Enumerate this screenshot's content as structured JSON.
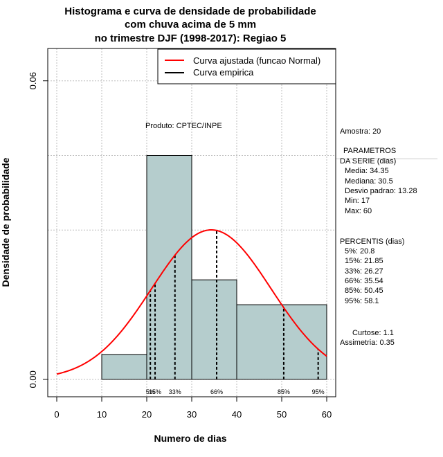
{
  "chart_data": {
    "type": "bar",
    "title_lines": [
      "Histograma e curva de densidade de probabilidade",
      "com chuva acima de 5 mm",
      "no trimestre DJF (1998-2017): Regiao 5"
    ],
    "xlabel": "Numero de dias",
    "ylabel": "Densidade de probabilidade",
    "xlim": [
      -2,
      62
    ],
    "ylim": [
      -0.0035,
      0.0665
    ],
    "x_ticks": [
      0,
      10,
      20,
      30,
      40,
      50,
      60
    ],
    "x_tick_labels": [
      "0",
      "10",
      "20",
      "30",
      "40",
      "50",
      "60"
    ],
    "y_ticks": [
      0.0,
      0.06
    ],
    "y_tick_labels": [
      "0.00",
      "0.06"
    ],
    "grid": true,
    "grid_x": [
      0,
      10,
      20,
      30,
      40,
      50,
      60
    ],
    "grid_y": [
      0.0,
      0.03,
      0.045,
      0.06
    ],
    "histogram": {
      "bins": [
        {
          "x0": 10,
          "x1": 20,
          "density": 0.005
        },
        {
          "x0": 20,
          "x1": 30,
          "density": 0.045
        },
        {
          "x0": 30,
          "x1": 40,
          "density": 0.02
        },
        {
          "x0": 40,
          "x1": 60,
          "density": 0.015
        }
      ],
      "fill_color": "#b5cdcd",
      "edge_color": "#000000"
    },
    "normal_curve": {
      "mean": 34.35,
      "sd": 13.28,
      "x_from": 0,
      "x_to": 60,
      "color": "#ff0000"
    },
    "percentile_lines": [
      {
        "label": "5%",
        "x": 20.8
      },
      {
        "label": "15%",
        "x": 21.85
      },
      {
        "label": "33%",
        "x": 26.27
      },
      {
        "label": "66%",
        "x": 35.54
      },
      {
        "label": "85%",
        "x": 50.45
      },
      {
        "label": "95%",
        "x": 58.1
      }
    ],
    "legend": {
      "position": "top-right",
      "entries": [
        {
          "label": "Curva ajustada (funcao Normal)",
          "color": "#ff0000"
        },
        {
          "label": "Curva empirica",
          "color": "#000000"
        }
      ]
    },
    "annotation": "Produto: CPTEC/INPE"
  },
  "side_panel": {
    "amostra": "Amostra: 20",
    "parametros_title_1": "PARAMETROS",
    "parametros_title_2": "DA SERIE (dias)",
    "media": "Media: 34.35",
    "mediana": "Mediana: 30.5",
    "desvio": "Desvio padrao: 13.28",
    "min": "Min: 17",
    "max": "Max: 60",
    "percentis_title": "PERCENTIS (dias)",
    "p5": "5%: 20.8",
    "p15": "15%: 21.85",
    "p33": "33%: 26.27",
    "p66": "66%: 35.54",
    "p85": "85%: 50.45",
    "p95": "95%: 58.1",
    "curtose": "Curtose: 1.1",
    "assimetria": "Assimetria: 0.35"
  }
}
